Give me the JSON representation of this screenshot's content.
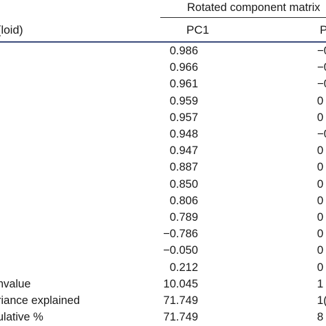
{
  "table": {
    "group_header": "Rotated component matrix",
    "columns": {
      "metal": "l(loid)",
      "pc1": "PC1",
      "pc2": "P"
    },
    "rows": [
      {
        "label": "",
        "pc1": "0.986",
        "pc2": "−0"
      },
      {
        "label": "",
        "pc1": "0.966",
        "pc2": "−0"
      },
      {
        "label": "",
        "pc1": "0.961",
        "pc2": "−0"
      },
      {
        "label": "",
        "pc1": "0.959",
        "pc2": "0"
      },
      {
        "label": "",
        "pc1": "0.957",
        "pc2": "0"
      },
      {
        "label": "",
        "pc1": "0.948",
        "pc2": "−0"
      },
      {
        "label": "",
        "pc1": "0.947",
        "pc2": "0"
      },
      {
        "label": "",
        "pc1": "0.887",
        "pc2": "0"
      },
      {
        "label": "",
        "pc1": "0.850",
        "pc2": "0"
      },
      {
        "label": "",
        "pc1": "0.806",
        "pc2": "0"
      },
      {
        "label": "",
        "pc1": "0.789",
        "pc2": "0"
      },
      {
        "label": "",
        "pc1": "−0.786",
        "pc2": "0"
      },
      {
        "label": "",
        "pc1": "−0.050",
        "pc2": "0"
      },
      {
        "label": "",
        "pc1": "0.212",
        "pc2": "0"
      },
      {
        "label": "nvalue",
        "pc1": "10.045",
        "pc2": "1"
      },
      {
        "label": "riance explained",
        "pc1": "71.749",
        "pc2": "1("
      },
      {
        "label": "ulative %",
        "pc1": "71.749",
        "pc2": "8"
      }
    ]
  }
}
